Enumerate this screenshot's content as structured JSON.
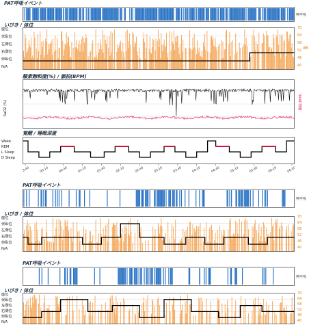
{
  "page": {
    "pat_title": "PAT呼吸イベント",
    "snore_title": "いびき / 体位",
    "spo2_title": "酸素飽和度(%) / 脈拍(BPM)",
    "sleep_title": "覚醒 / 睡眠深度",
    "spo2_axis": "SaO2 (%)",
    "pulse_axis": "脈拍(BPM)",
    "corner_label": "無呼吸",
    "db_unit": "dB",
    "position_labels": [
      "座位",
      "伏臥位",
      "左側位",
      "右側位",
      "仰臥位",
      "N/A"
    ],
    "db_ticks": [
      "70",
      "64",
      "58",
      "52",
      "46",
      "40"
    ],
    "sleep_stage_labels": [
      "Wake",
      "REM",
      "L Sleep",
      "D Sleep"
    ],
    "time_ticks": [
      "23:40",
      "00:10",
      "00:40",
      "01:10",
      "01:40",
      "02:10",
      "02:40",
      "03:10",
      "03:40",
      "04:10",
      "04:40",
      "05:10",
      "05:40",
      "06:10",
      "06:40"
    ]
  },
  "colors": {
    "event_blue": "#2a73c4",
    "snore_orange": "#f5a351",
    "pulse_pink": "#e2336a",
    "rem_red": "#d0133a",
    "line_black": "#000000"
  },
  "chart_data": [
    {
      "type": "bar",
      "panel": "pat-events-1",
      "title": "PAT呼吸イベント",
      "event_density_per_segment": [
        0.9,
        0.85,
        0.8,
        0.9,
        0.7,
        0.85,
        0.9,
        0.75,
        0.8,
        0.9,
        0.85,
        0.7,
        0.8,
        0.9,
        0.85,
        0.9,
        0.8,
        0.75,
        0.9,
        0.85
      ]
    },
    {
      "type": "area",
      "panel": "snore-position-1",
      "title": "いびき / 体位",
      "ylabel_left": [
        "座位",
        "伏臥位",
        "左側位",
        "右側位",
        "仰臥位",
        "N/A"
      ],
      "ylabel_right": [
        "70",
        "64",
        "58",
        "52",
        "46",
        "40"
      ],
      "position_steps": [
        {
          "x": 0,
          "pos": "仰臥位"
        },
        {
          "x": 0.835,
          "pos": "右側位"
        }
      ],
      "snore_level_db": 64
    },
    {
      "type": "line",
      "panel": "spo2-pulse",
      "title": "酸素飽和度(%) / 脈拍(BPM)",
      "series": [
        {
          "name": "SaO2 (%)",
          "approx_baseline": 94,
          "dips_to": 75
        },
        {
          "name": "脈拍(BPM)",
          "approx_baseline": 60
        }
      ]
    },
    {
      "type": "line",
      "panel": "sleep-stage",
      "title": "覚醒 / 睡眠深度",
      "stages": [
        "Wake",
        "REM",
        "L Sleep",
        "D Sleep"
      ],
      "x": [
        "23:40",
        "00:10",
        "00:40",
        "01:10",
        "01:40",
        "02:10",
        "02:40",
        "03:10",
        "03:40",
        "04:10",
        "04:40",
        "05:10",
        "05:40",
        "06:10",
        "06:40"
      ],
      "hypnogram": [
        [
          0.0,
          "Wake"
        ],
        [
          0.02,
          "L Sleep"
        ],
        [
          0.06,
          "D Sleep"
        ],
        [
          0.1,
          "L Sleep"
        ],
        [
          0.14,
          "REM"
        ],
        [
          0.19,
          "L Sleep"
        ],
        [
          0.25,
          "D Sleep"
        ],
        [
          0.3,
          "L Sleep"
        ],
        [
          0.34,
          "REM"
        ],
        [
          0.39,
          "L Sleep"
        ],
        [
          0.43,
          "D Sleep"
        ],
        [
          0.47,
          "L Sleep"
        ],
        [
          0.52,
          "REM"
        ],
        [
          0.56,
          "L Sleep"
        ],
        [
          0.6,
          "D Sleep"
        ],
        [
          0.64,
          "L Sleep"
        ],
        [
          0.68,
          "Wake"
        ],
        [
          0.71,
          "REM"
        ],
        [
          0.76,
          "L Sleep"
        ],
        [
          0.8,
          "D Sleep"
        ],
        [
          0.84,
          "L Sleep"
        ],
        [
          0.88,
          "REM"
        ],
        [
          0.93,
          "L Sleep"
        ],
        [
          0.97,
          "Wake"
        ],
        [
          1.0,
          "Wake"
        ]
      ]
    },
    {
      "type": "bar",
      "panel": "pat-events-2",
      "title": "PAT呼吸イベント",
      "event_density_per_segment": [
        0.1,
        0.4,
        0.3,
        0.2,
        0.5,
        0.0,
        0.1,
        0.3,
        0.6,
        0.7,
        0.5,
        0.4,
        0.1,
        0.2,
        0.0,
        0.5,
        0.6,
        0.2,
        0.1,
        0.3
      ]
    },
    {
      "type": "area",
      "panel": "snore-position-2",
      "title": "いびき / 体位",
      "ylabel_left": [
        "座位",
        "伏臥位",
        "左側位",
        "右側位",
        "仰臥位",
        "N/A"
      ],
      "ylabel_right": [
        "70",
        "64",
        "58",
        "52",
        "46",
        "40"
      ],
      "position_steps": [
        {
          "x": 0.0,
          "pos": "右側位"
        },
        {
          "x": 0.02,
          "pos": "仰臥位"
        },
        {
          "x": 0.07,
          "pos": "右側位"
        },
        {
          "x": 0.22,
          "pos": "仰臥位"
        },
        {
          "x": 0.29,
          "pos": "右側位"
        },
        {
          "x": 0.36,
          "pos": "伏臥位"
        },
        {
          "x": 0.43,
          "pos": "右側位"
        },
        {
          "x": 0.52,
          "pos": "仰臥位"
        },
        {
          "x": 0.6,
          "pos": "右側位"
        },
        {
          "x": 0.67,
          "pos": "仰臥位"
        },
        {
          "x": 0.74,
          "pos": "右側位"
        },
        {
          "x": 0.83,
          "pos": "仰臥位"
        },
        {
          "x": 0.9,
          "pos": "右側位"
        },
        {
          "x": 1.0,
          "pos": "右側位"
        }
      ]
    },
    {
      "type": "bar",
      "panel": "pat-events-3",
      "title": "PAT呼吸イベント",
      "event_density_per_segment": [
        0.0,
        0.3,
        0.1,
        0.5,
        0.1,
        0.2,
        0.0,
        0.6,
        0.5,
        0.6,
        0.5,
        0.2,
        0.3,
        0.5,
        0.0,
        0.5,
        0.1,
        0.3,
        0.1,
        0.0
      ]
    },
    {
      "type": "area",
      "panel": "snore-position-3",
      "title": "いびき / 体位",
      "ylabel_left": [
        "座位",
        "伏臥位",
        "左側位",
        "右側位",
        "仰臥位",
        "N/A"
      ],
      "ylabel_right": [
        "70",
        "64",
        "58",
        "52",
        "46",
        "40"
      ],
      "position_steps": [
        {
          "x": 0.0,
          "pos": "仰臥位"
        },
        {
          "x": 0.07,
          "pos": "右側位"
        },
        {
          "x": 0.14,
          "pos": "伏臥位"
        },
        {
          "x": 0.24,
          "pos": "右側位"
        },
        {
          "x": 0.33,
          "pos": "左側位"
        },
        {
          "x": 0.43,
          "pos": "仰臥位"
        },
        {
          "x": 0.52,
          "pos": "伏臥位"
        },
        {
          "x": 0.62,
          "pos": "右側位"
        },
        {
          "x": 0.72,
          "pos": "仰臥位"
        },
        {
          "x": 0.8,
          "pos": "左側位"
        },
        {
          "x": 0.88,
          "pos": "右側位"
        },
        {
          "x": 1.0,
          "pos": "右側位"
        }
      ]
    }
  ]
}
